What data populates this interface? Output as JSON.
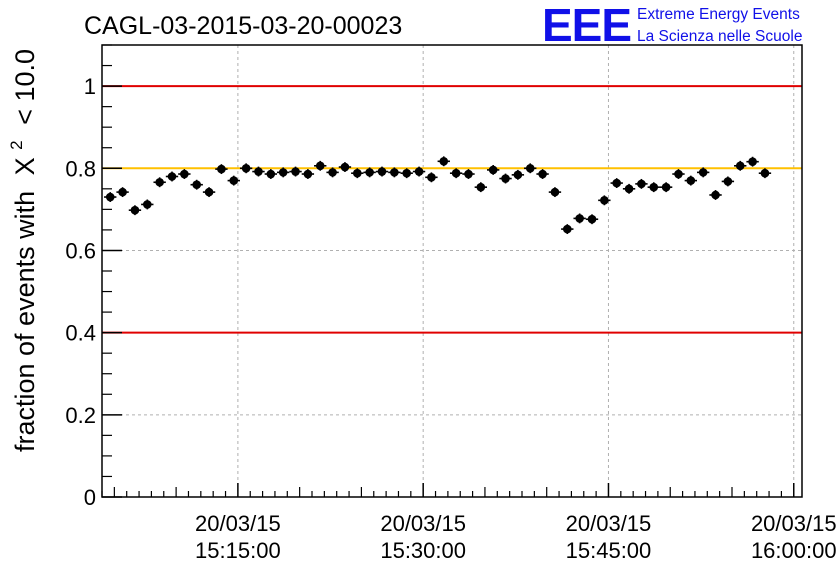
{
  "chart_data": {
    "type": "scatter",
    "title": "CAGL-03-2015-03-20-00023",
    "ylabel": "fraction of events with",
    "ylabel_symbol": "X",
    "ylabel_sup": "2",
    "ylabel_tail": "< 10.0",
    "xlabel": "",
    "ylim": [
      0,
      1.1
    ],
    "xlim": [
      "2015-03-20 15:04:00",
      "2015-03-20 16:00:40"
    ],
    "yticks": [
      "0",
      "0.2",
      "0.4",
      "0.6",
      "0.8",
      "1"
    ],
    "xticks": [
      {
        "date": "20/03/15",
        "time": "15:15:00"
      },
      {
        "date": "20/03/15",
        "time": "15:30:00"
      },
      {
        "date": "20/03/15",
        "time": "15:45:00"
      },
      {
        "date": "20/03/15",
        "time": "16:00:00"
      }
    ],
    "grid": true,
    "reference_lines": [
      {
        "y": 1.0,
        "color": "#e00000"
      },
      {
        "y": 0.8,
        "color": "#ffc000"
      },
      {
        "y": 0.4,
        "color": "#e00000"
      }
    ],
    "x_bin_minutes": 1,
    "x_first_bin_center": "2015-03-20 15:04:40",
    "y_error": 0.012,
    "values": [
      0.73,
      0.742,
      0.698,
      0.712,
      0.766,
      0.78,
      0.786,
      0.76,
      0.742,
      0.798,
      0.77,
      0.8,
      0.792,
      0.786,
      0.79,
      0.792,
      0.786,
      0.806,
      0.79,
      0.803,
      0.788,
      0.79,
      0.792,
      0.79,
      0.788,
      0.792,
      0.778,
      0.817,
      0.788,
      0.786,
      0.754,
      0.796,
      0.775,
      0.784,
      0.8,
      0.786,
      0.742,
      0.652,
      0.678,
      0.676,
      0.722,
      0.764,
      0.75,
      0.762,
      0.754,
      0.754,
      0.786,
      0.77,
      0.79,
      0.735,
      0.768,
      0.806,
      0.816,
      0.788
    ]
  },
  "logo": {
    "mark": "EEE",
    "line1": "Extreme Energy Events",
    "line2": "La Scienza nelle Scuole",
    "color": "#1010e8"
  }
}
